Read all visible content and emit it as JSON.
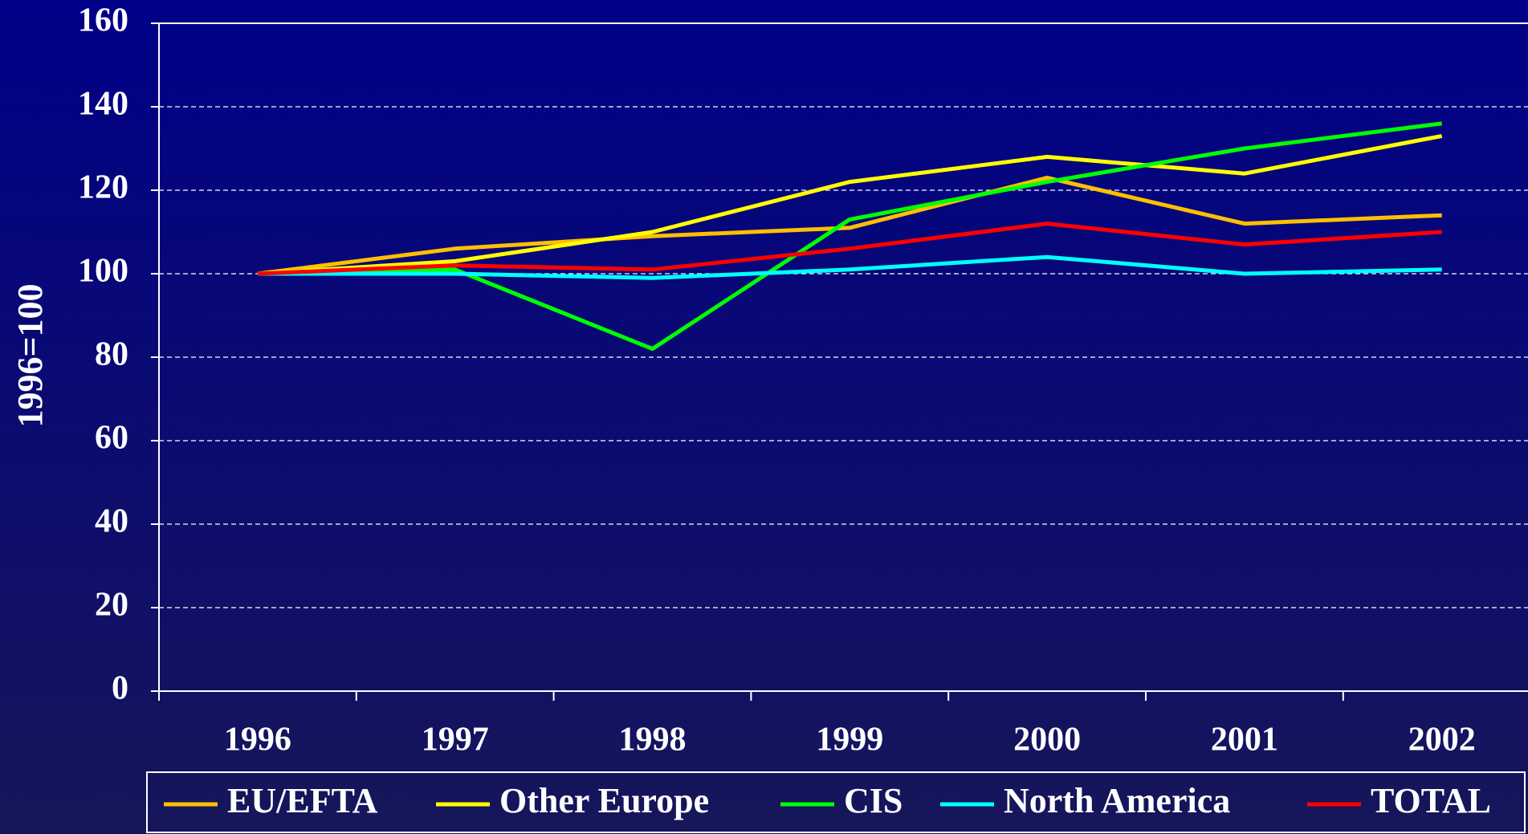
{
  "chart_data": {
    "type": "line",
    "ylabel": "1996=100",
    "categories": [
      "1996",
      "1997",
      "1998",
      "1999",
      "2000",
      "2001",
      "2002"
    ],
    "series": [
      {
        "name": "EU/EFTA",
        "color": "#ffc000",
        "values": [
          100,
          106,
          109,
          111,
          123,
          112,
          114
        ]
      },
      {
        "name": "Other Europe",
        "color": "#ffff00",
        "values": [
          100,
          103,
          110,
          122,
          128,
          124,
          133
        ]
      },
      {
        "name": "CIS",
        "color": "#00ff00",
        "values": [
          100,
          101,
          82,
          113,
          122,
          130,
          136
        ]
      },
      {
        "name": "North America",
        "color": "#00ffff",
        "values": [
          100,
          100,
          99,
          101,
          104,
          100,
          101
        ]
      },
      {
        "name": "TOTAL",
        "color": "#ff0000",
        "values": [
          100,
          102,
          101,
          106,
          112,
          107,
          110
        ]
      }
    ],
    "ylim": [
      0,
      160
    ],
    "yticks": [
      0,
      20,
      40,
      60,
      80,
      100,
      120,
      140,
      160
    ],
    "grid": true,
    "legend": "bottom"
  }
}
